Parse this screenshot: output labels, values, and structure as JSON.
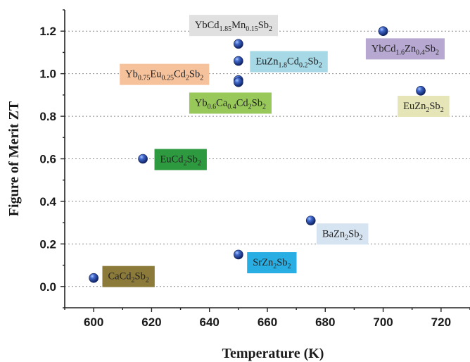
{
  "chart_data": {
    "type": "scatter",
    "xlabel": "Temperature (K)",
    "ylabel": "Figure of Merit ZT",
    "xlim": [
      590,
      730
    ],
    "ylim": [
      -0.1,
      1.3
    ],
    "xticks": [
      600,
      620,
      640,
      660,
      680,
      700,
      720
    ],
    "yticks": [
      0.0,
      0.2,
      0.4,
      0.6,
      0.8,
      1.0,
      1.2
    ],
    "xtick_labels": [
      "600",
      "620",
      "640",
      "660",
      "680",
      "700",
      "720"
    ],
    "ytick_labels": [
      "0.0",
      "0.2",
      "0.4",
      "0.6",
      "0.8",
      "1.0",
      "1.2"
    ],
    "grid": "horizontal-dashed",
    "marker_color": "#1f3f8f",
    "points": [
      {
        "x": 600,
        "y": 0.04,
        "label": {
          "base": "CaCd",
          "sub1": "2",
          "mid": "Sb",
          "sub2": "2"
        },
        "label_color": "#8b7a3a",
        "label_text_color": "#222222",
        "lx": 603,
        "ly": 0.05
      },
      {
        "x": 617,
        "y": 0.6,
        "label": {
          "base": "EuCd",
          "sub1": "2",
          "mid": "Sb",
          "sub2": "2"
        },
        "label_color": "#2e9a3f",
        "label_text_color": "#1a1a1a",
        "lx": 621,
        "ly": 0.6
      },
      {
        "x": 650,
        "y": 0.15,
        "label": {
          "base": "SrZn",
          "sub1": "2",
          "mid": "Sb",
          "sub2": "2"
        },
        "label_color": "#29aee3",
        "label_text_color": "#1a1a1a",
        "lx": 653,
        "ly": 0.115
      },
      {
        "x": 675,
        "y": 0.31,
        "label": {
          "base": "BaZn",
          "sub1": "2",
          "mid": "Sb",
          "sub2": "2"
        },
        "label_color": "#d6e4f2",
        "label_text_color": "#222222",
        "lx": 677,
        "ly": 0.25
      },
      {
        "x": 713,
        "y": 0.92,
        "label": {
          "base": "EuZn",
          "sub1": "2",
          "mid": "Sb",
          "sub2": "2"
        },
        "label_color": "#e6e5b8",
        "label_text_color": "#222222",
        "lx": 705,
        "ly": 0.85
      },
      {
        "x": 700,
        "y": 1.2,
        "label": {
          "base": "YbCd",
          "sub1": "1.6",
          "mid": "Zn",
          "sub2": "0.4",
          "tail": "Sb",
          "sub3": "2"
        },
        "label_color": "#b6a8d0",
        "label_text_color": "#222222",
        "lx": 694,
        "ly": 1.12
      },
      {
        "x": 650,
        "y": 1.14,
        "label": {
          "base": "YbCd",
          "sub1": "1.85",
          "mid": "Mn",
          "sub2": "0.15",
          "tail": "Sb",
          "sub3": "2"
        },
        "label_color": "#e0e0e0",
        "label_text_color": "#222222",
        "lx": 633,
        "ly": 1.23
      },
      {
        "x": 650,
        "y": 1.06,
        "label": {
          "base": "EuZn",
          "sub1": "1.8",
          "mid": "Cd",
          "sub2": "0.2",
          "tail": "Sb",
          "sub3": "2"
        },
        "label_color": "#a6d8e6",
        "label_text_color": "#222222",
        "lx": 654,
        "ly": 1.06
      },
      {
        "x": 650,
        "y": 0.97,
        "label": {
          "base": "Yb",
          "sub1": "0.75",
          "mid": "Eu",
          "sub2": "0.25",
          "tail": "Cd",
          "sub3": "2",
          "tail2": "Sb",
          "sub4": "2"
        },
        "label_color": "#f6c29c",
        "label_text_color": "#222222",
        "lx": 609,
        "ly": 1.0
      },
      {
        "x": 650,
        "y": 0.96,
        "label": {
          "base": "Yb",
          "sub1": "0.6",
          "mid": "Ca",
          "sub2": "0.4",
          "tail": "Cd",
          "sub3": "2",
          "tail2": "Sb",
          "sub4": "2"
        },
        "label_color": "#98c85a",
        "label_text_color": "#1a1a1a",
        "lx": 633,
        "ly": 0.865
      }
    ]
  }
}
